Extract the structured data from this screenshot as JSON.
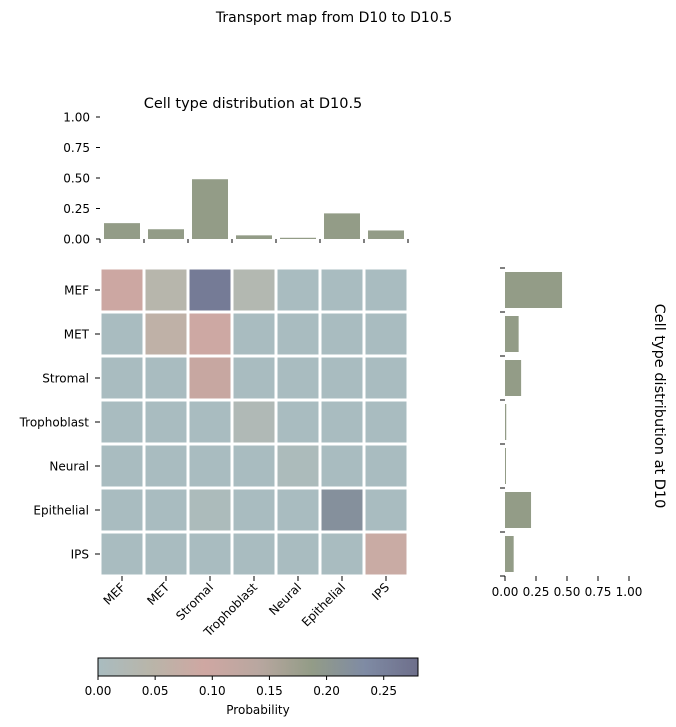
{
  "title": "Transport map from D10 to D10.5",
  "categories": [
    "MEF",
    "MET",
    "Stromal",
    "Trophoblast",
    "Neural",
    "Epithelial",
    "IPS"
  ],
  "colors": {
    "bar": "#939c87",
    "colormap": [
      "#a9bcc0",
      "#b9b5a9",
      "#cfa7a2",
      "#b9a7a0",
      "#939c87",
      "#7f8ba4",
      "#6e6f8b"
    ]
  },
  "chart_data": [
    {
      "type": "bar",
      "title": "Cell type distribution at D10.5",
      "orientation": "vertical",
      "categories": [
        "MEF",
        "MET",
        "Stromal",
        "Trophoblast",
        "Neural",
        "Epithelial",
        "IPS"
      ],
      "values": [
        0.13,
        0.08,
        0.49,
        0.03,
        0.01,
        0.21,
        0.07
      ],
      "ylim": [
        0,
        1.0
      ],
      "yticks": [
        "0.00",
        "0.25",
        "0.50",
        "0.75",
        "1.00"
      ],
      "xlabel": "",
      "ylabel": ""
    },
    {
      "type": "heatmap",
      "rows": [
        "MEF",
        "MET",
        "Stromal",
        "Trophoblast",
        "Neural",
        "Epithelial",
        "IPS"
      ],
      "columns": [
        "MEF",
        "MET",
        "Stromal",
        "Trophoblast",
        "Neural",
        "Epithelial",
        "IPS"
      ],
      "values": [
        [
          0.1,
          0.04,
          0.26,
          0.03,
          0.0,
          0.0,
          0.0
        ],
        [
          0.0,
          0.06,
          0.09,
          0.0,
          0.0,
          0.0,
          0.0
        ],
        [
          0.0,
          0.0,
          0.11,
          0.0,
          0.0,
          0.0,
          0.0
        ],
        [
          0.0,
          0.0,
          0.0,
          0.02,
          0.0,
          0.0,
          0.0
        ],
        [
          0.0,
          0.0,
          0.0,
          0.0,
          0.01,
          0.0,
          0.0
        ],
        [
          0.0,
          0.0,
          0.01,
          0.0,
          0.0,
          0.22,
          0.0
        ],
        [
          0.0,
          0.0,
          0.0,
          0.0,
          0.0,
          0.0,
          0.08
        ]
      ],
      "colorbar": {
        "label": "Probability",
        "range": [
          0,
          0.28
        ],
        "ticks": [
          "0.00",
          "0.05",
          "0.10",
          "0.15",
          "0.20",
          "0.25"
        ]
      }
    },
    {
      "type": "bar",
      "title": "Cell type distribution at D10",
      "orientation": "horizontal",
      "categories": [
        "MEF",
        "MET",
        "Stromal",
        "Trophoblast",
        "Neural",
        "Epithelial",
        "IPS"
      ],
      "values": [
        0.46,
        0.11,
        0.13,
        0.01,
        0.005,
        0.21,
        0.07
      ],
      "xlim": [
        0,
        1.0
      ],
      "xticks": [
        "0.00",
        "0.25",
        "0.50",
        "0.75",
        "1.00"
      ],
      "xlabel": "",
      "ylabel": ""
    }
  ]
}
